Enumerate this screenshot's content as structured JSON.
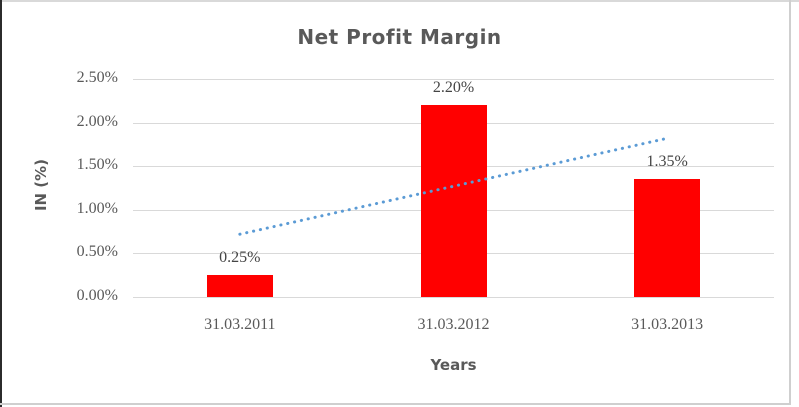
{
  "chart_data": {
    "type": "bar",
    "title": "Net Profit Margin",
    "xlabel": "Years",
    "ylabel": "IN (%)",
    "categories": [
      "31.03.2011",
      "31.03.2012",
      "31.03.2013"
    ],
    "values": [
      0.25,
      2.2,
      1.35
    ],
    "data_labels": [
      "0.25%",
      "2.20%",
      "1.35%"
    ],
    "yticks": [
      {
        "value": 0.0,
        "label": "0.00%"
      },
      {
        "value": 0.5,
        "label": "0.50%"
      },
      {
        "value": 1.0,
        "label": "1.00%"
      },
      {
        "value": 1.5,
        "label": "1.50%"
      },
      {
        "value": 2.0,
        "label": "2.00%"
      },
      {
        "value": 2.5,
        "label": "2.50%"
      }
    ],
    "ylim": [
      0,
      2.5
    ],
    "grid": true,
    "legend": "none",
    "colors": {
      "bar": "#FF0000",
      "trendline": "#5B9BD5",
      "grid": "#D9D9D9",
      "text": "#595959"
    },
    "trendline": {
      "type": "linear",
      "style": "dotted",
      "start_value": 0.72,
      "end_value": 1.82
    }
  }
}
